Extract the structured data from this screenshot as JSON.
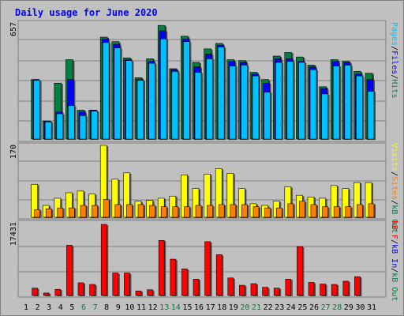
{
  "title": "Daily usage for June 2020",
  "colors": {
    "background": "#c0c0c0",
    "hits": "#008040",
    "files": "#0000ff",
    "pages": "#00c0ff",
    "visits": "#ffff00",
    "sites": "#ff8000",
    "kbin": "#ff0000",
    "grid": "#808080",
    "title": "#0000ff"
  },
  "chart_data": [
    {
      "type": "bar",
      "name": "hits-files-pages",
      "max_label": "657",
      "ymax": 657,
      "categories": [
        "1",
        "2",
        "3",
        "4",
        "5",
        "6",
        "7",
        "8",
        "9",
        "10",
        "11",
        "12",
        "13",
        "14",
        "15",
        "16",
        "17",
        "18",
        "19",
        "20",
        "21",
        "22",
        "23",
        "24",
        "25",
        "26",
        "27",
        "28",
        "29",
        "30",
        "31"
      ],
      "category_colors": [
        "#000000",
        "#000000",
        "#000000",
        "#000000",
        "#000000",
        "#008040",
        "#008040",
        "#000000",
        "#000000",
        "#000000",
        "#000000",
        "#000000",
        "#008040",
        "#008040",
        "#000000",
        "#000000",
        "#000000",
        "#000000",
        "#000000",
        "#008040",
        "#008040",
        "#000000",
        "#000000",
        "#000000",
        "#000000",
        "#000000",
        "#008040",
        "#008040",
        "#000000",
        "#000000",
        "#000000"
      ],
      "series": [
        {
          "name": "Hits",
          "values": [
            0,
            330,
            100,
            310,
            440,
            160,
            160,
            565,
            540,
            450,
            340,
            445,
            630,
            390,
            570,
            425,
            500,
            530,
            440,
            435,
            370,
            330,
            460,
            480,
            455,
            410,
            290,
            440,
            430,
            375,
            365
          ]
        },
        {
          "name": "Files",
          "values": [
            0,
            330,
            100,
            150,
            330,
            150,
            160,
            555,
            525,
            440,
            330,
            430,
            600,
            385,
            555,
            400,
            470,
            520,
            430,
            425,
            360,
            310,
            445,
            445,
            430,
            400,
            280,
            430,
            425,
            360,
            330
          ]
        },
        {
          "name": "Pages",
          "values": [
            0,
            325,
            95,
            140,
            185,
            130,
            155,
            535,
            505,
            435,
            325,
            420,
            555,
            375,
            540,
            370,
            445,
            510,
            405,
            410,
            350,
            260,
            425,
            430,
            425,
            385,
            250,
            405,
            410,
            350,
            265
          ]
        }
      ],
      "legend": [
        "Pages",
        "/",
        "Files",
        "/",
        "Hits"
      ]
    },
    {
      "type": "bar",
      "name": "visits-sites",
      "max_label": "170",
      "ymax": 170,
      "series": [
        {
          "name": "Visits",
          "values": [
            0,
            78,
            28,
            45,
            58,
            62,
            55,
            170,
            90,
            105,
            38,
            40,
            45,
            50,
            100,
            68,
            102,
            115,
            104,
            68,
            32,
            28,
            38,
            72,
            52,
            48,
            45,
            75,
            68,
            82,
            82
          ]
        },
        {
          "name": "Sites",
          "values": [
            0,
            18,
            20,
            22,
            22,
            28,
            28,
            42,
            30,
            30,
            30,
            28,
            25,
            25,
            25,
            28,
            28,
            30,
            30,
            30,
            25,
            22,
            22,
            32,
            38,
            30,
            25,
            25,
            25,
            30,
            32
          ]
        }
      ],
      "legend": [
        "Visits",
        "/",
        "Sites",
        "/",
        "kB Out"
      ]
    },
    {
      "type": "bar",
      "name": "kb",
      "max_label": "17431",
      "ymax": 17431,
      "series": [
        {
          "name": "kB F",
          "values": [
            0,
            1800,
            600,
            1500,
            12300,
            3100,
            2700,
            17431,
            5500,
            5500,
            1100,
            1400,
            13500,
            8900,
            6500,
            4000,
            13200,
            10000,
            4300,
            2500,
            2900,
            2000,
            1800,
            4000,
            12000,
            3200,
            2800,
            2700,
            3500,
            4600,
            0
          ]
        }
      ],
      "legend": [
        "kB F",
        "/",
        "kB In",
        "/",
        "kB Out"
      ]
    }
  ]
}
